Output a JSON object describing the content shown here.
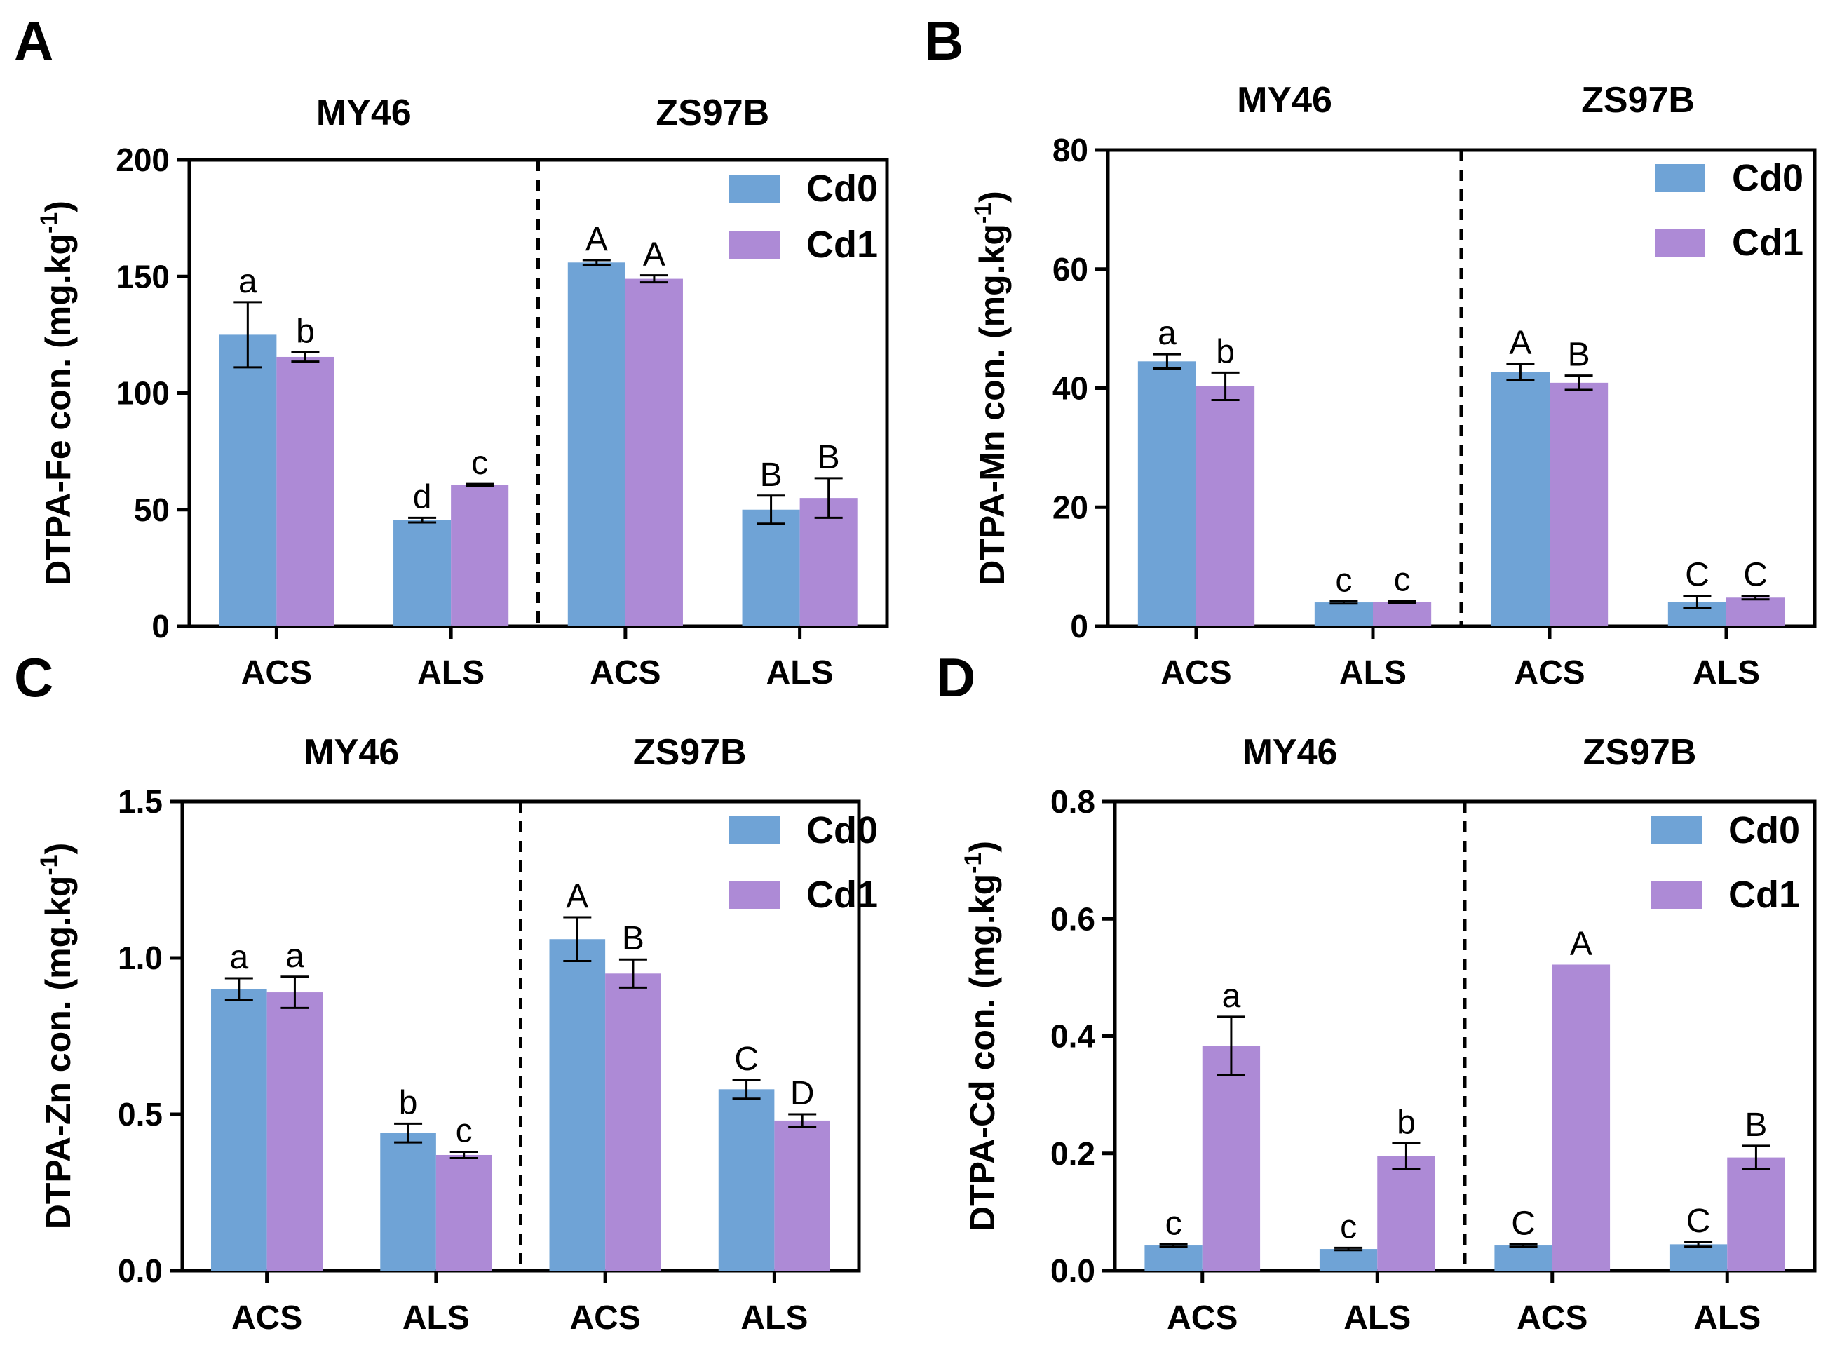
{
  "colors": {
    "Cd0": "#6fa3d6",
    "Cd1": "#ad8ad6",
    "axis": "#000000"
  },
  "legend": [
    "Cd0",
    "Cd1"
  ],
  "chart_data": [
    {
      "panel": "A",
      "type": "bar",
      "groups": [
        "MY46",
        "ZS97B"
      ],
      "categories": [
        "ACS",
        "ALS",
        "ACS",
        "ALS"
      ],
      "ylabel": "DTPA-Fe con. (mg.kg",
      "ylabel_sup": "-1",
      "ylabel_end": ")",
      "ylim": [
        0,
        200
      ],
      "yticks": [
        0,
        50,
        100,
        150,
        200
      ],
      "series": [
        {
          "name": "Cd0",
          "values": [
            125,
            45.5,
            156,
            50
          ],
          "errors": [
            14,
            1,
            1,
            6
          ],
          "labels": [
            "a",
            "d",
            "A",
            "B"
          ]
        },
        {
          "name": "Cd1",
          "values": [
            115.5,
            60.5,
            149,
            55
          ],
          "errors": [
            2,
            0.5,
            1.5,
            8.5
          ],
          "labels": [
            "b",
            "c",
            "A",
            "B"
          ]
        }
      ]
    },
    {
      "panel": "B",
      "type": "bar",
      "groups": [
        "MY46",
        "ZS97B"
      ],
      "categories": [
        "ACS",
        "ALS",
        "ACS",
        "ALS"
      ],
      "ylabel": "DTPA-Mn con. (mg.kg",
      "ylabel_sup": "-1",
      "ylabel_end": ")",
      "ylim": [
        0,
        80
      ],
      "yticks": [
        0,
        20,
        40,
        60,
        80
      ],
      "series": [
        {
          "name": "Cd0",
          "values": [
            44.5,
            4,
            42.7,
            4.1
          ],
          "errors": [
            1.2,
            0.2,
            1.4,
            1.0
          ],
          "labels": [
            "a",
            "c",
            "A",
            "C"
          ]
        },
        {
          "name": "Cd1",
          "values": [
            40.3,
            4.1,
            40.9,
            4.8
          ],
          "errors": [
            2.3,
            0.2,
            1.2,
            0.3
          ],
          "labels": [
            "b",
            "c",
            "B",
            "C"
          ]
        }
      ]
    },
    {
      "panel": "C",
      "type": "bar",
      "groups": [
        "MY46",
        "ZS97B"
      ],
      "categories": [
        "ACS",
        "ALS",
        "ACS",
        "ALS"
      ],
      "ylabel": "DTPA-Zn con. (mg.kg",
      "ylabel_sup": "-1",
      "ylabel_end": ")",
      "ylim": [
        0,
        1.5
      ],
      "yticks": [
        "0.0",
        "0.5",
        "1.0",
        "1.5"
      ],
      "series": [
        {
          "name": "Cd0",
          "values": [
            0.9,
            0.44,
            1.06,
            0.58
          ],
          "errors": [
            0.035,
            0.03,
            0.07,
            0.03
          ],
          "labels": [
            "a",
            "b",
            "A",
            "C"
          ]
        },
        {
          "name": "Cd1",
          "values": [
            0.89,
            0.37,
            0.95,
            0.48
          ],
          "errors": [
            0.05,
            0.01,
            0.045,
            0.02
          ],
          "labels": [
            "a",
            "c",
            "B",
            "D"
          ]
        }
      ]
    },
    {
      "panel": "D",
      "type": "bar",
      "groups": [
        "MY46",
        "ZS97B"
      ],
      "categories": [
        "ACS",
        "ALS",
        "ACS",
        "ALS"
      ],
      "ylabel": "DTPA-Cd con. (mg.kg",
      "ylabel_sup": "-1",
      "ylabel_end": ")",
      "ylim": [
        0,
        0.8
      ],
      "yticks": [
        "0.0",
        "0.2",
        "0.4",
        "0.6",
        "0.8"
      ],
      "series": [
        {
          "name": "Cd0",
          "values": [
            0.043,
            0.037,
            0.043,
            0.045
          ],
          "errors": [
            0.002,
            0.002,
            0.002,
            0.004
          ],
          "labels": [
            "c",
            "c",
            "C",
            "C"
          ]
        },
        {
          "name": "Cd1",
          "values": [
            0.383,
            0.195,
            0.522,
            0.193
          ],
          "errors": [
            0.05,
            0.022,
            0.0,
            0.02
          ],
          "labels": [
            "a",
            "b",
            "A",
            "B"
          ]
        }
      ]
    }
  ]
}
